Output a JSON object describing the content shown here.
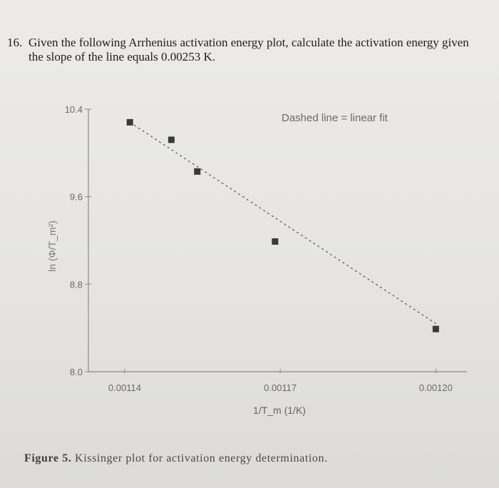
{
  "question": {
    "number": "16.",
    "line1": "Given the following Arrhenius activation energy plot, calculate the activation energy given",
    "line2": "the slope of the line equals 0.00253 K."
  },
  "chart_data": {
    "type": "scatter",
    "legend_note": "Dashed line = linear fit",
    "xlabel": "1/T_m (1/K)",
    "ylabel": "ln (Φ/T_m²)",
    "x_ticks": [
      {
        "value": 0.00114,
        "label": "0.00114"
      },
      {
        "value": 0.00117,
        "label": "0.00117"
      },
      {
        "value": 0.0012,
        "label": "0.00120"
      }
    ],
    "y_ticks": [
      {
        "value": 8.0,
        "label": "8.0"
      },
      {
        "value": 8.8,
        "label": "8.8"
      },
      {
        "value": 9.6,
        "label": "9.6"
      },
      {
        "value": 10.4,
        "label": "10.4"
      }
    ],
    "xlim": [
      0.001133,
      0.001206
    ],
    "ylim": [
      8.0,
      10.4
    ],
    "points": [
      {
        "x": 0.001141,
        "y": 10.28
      },
      {
        "x": 0.001149,
        "y": 10.12
      },
      {
        "x": 0.001154,
        "y": 9.83
      },
      {
        "x": 0.001169,
        "y": 9.19
      },
      {
        "x": 0.0012,
        "y": 8.39
      }
    ],
    "fit_line": {
      "x": [
        0.001141,
        0.0012
      ],
      "y": [
        10.28,
        8.44
      ]
    },
    "marker_color": "#3a3a3a",
    "fit_color": "#555555"
  },
  "caption": {
    "label": "Figure 5.",
    "text": "Kissinger plot for activation energy determination."
  }
}
